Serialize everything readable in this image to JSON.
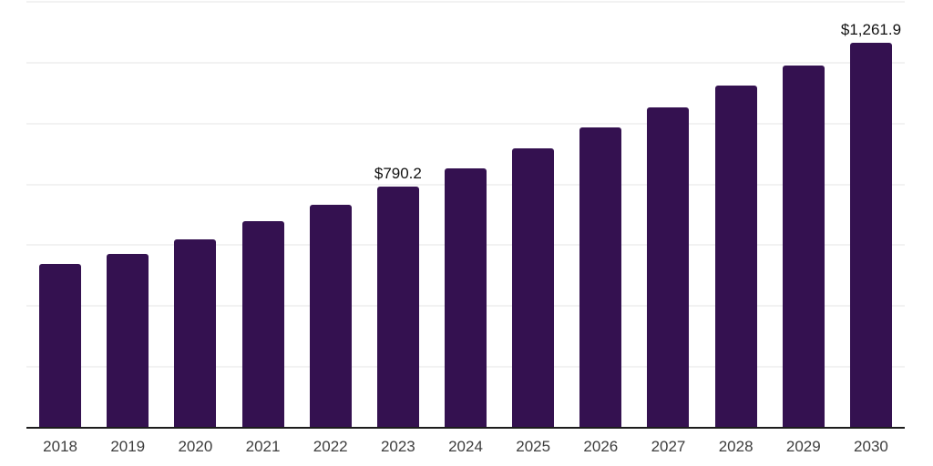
{
  "chart_data": {
    "type": "bar",
    "title": "",
    "xlabel": "",
    "ylabel": "",
    "categories": [
      "2018",
      "2019",
      "2020",
      "2021",
      "2022",
      "2023",
      "2024",
      "2025",
      "2026",
      "2027",
      "2028",
      "2029",
      "2030"
    ],
    "values": [
      535,
      567,
      615,
      677,
      730,
      790.2,
      851,
      916,
      983,
      1051,
      1122,
      1188,
      1261.9
    ],
    "value_labels": [
      "",
      "",
      "",
      "",
      "",
      "$790.2",
      "",
      "",
      "",
      "",
      "",
      "",
      "$1,261.9"
    ],
    "ylim": [
      0,
      1400
    ],
    "gridline_step": 200,
    "grid": true,
    "legend": false,
    "colors": {
      "bar": "#341150",
      "axis": "#1c1c1c",
      "gridline": "#f2f2f2",
      "tick_label": "#3d3d3d",
      "value_label": "#111111"
    }
  }
}
